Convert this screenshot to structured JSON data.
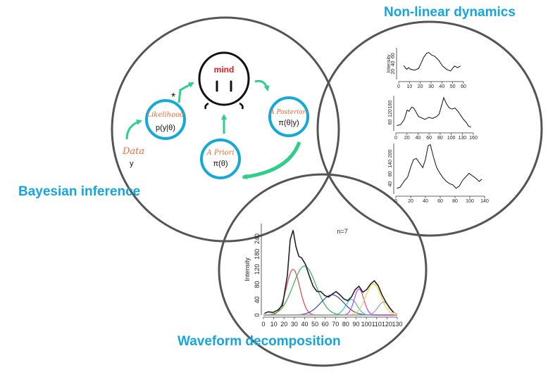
{
  "colors": {
    "title": "#15a5e0",
    "accent_orange": "#f06b3b",
    "node_ring": "#15a9d8",
    "arrow": "#2ecf8a",
    "venn": "#555555",
    "mind": "#e0161f"
  },
  "sections": {
    "bayesian": "Bayesian inference",
    "nonlinear": "Non-linear dynamics",
    "waveform": "Waveform decomposition"
  },
  "bayes": {
    "mind_label": "mind",
    "star": "*",
    "data_label": "Data",
    "data_symbol": "y",
    "likelihood_label": "Likelihood",
    "likelihood_formula": "p(y|θ)",
    "prior_label": "A Priori",
    "prior_formula": "π(θ)",
    "posterior_label": "A Posteriori",
    "posterior_formula": "π(θ|y)"
  },
  "chart_data": [
    {
      "type": "line",
      "ylabel": "Intensity",
      "x_ticks": [
        "0",
        "10",
        "20",
        "30",
        "40",
        "50",
        "60"
      ],
      "y_ticks": [
        "20",
        "40",
        "60"
      ],
      "xlim": [
        0,
        65
      ],
      "ylim": [
        0,
        75
      ],
      "x": [
        5,
        8,
        10,
        12,
        16,
        20,
        22,
        25,
        28,
        30,
        33,
        36,
        40,
        44,
        48,
        52,
        56,
        59,
        62
      ],
      "y": [
        33,
        24,
        28,
        24,
        22,
        26,
        36,
        52,
        62,
        64,
        58,
        55,
        46,
        32,
        24,
        20,
        32,
        28,
        32
      ]
    },
    {
      "type": "line",
      "x_ticks": [
        "0",
        "20",
        "40",
        "60",
        "80",
        "100",
        "130",
        "160"
      ],
      "y_ticks": [
        "60",
        "120",
        "160"
      ],
      "xlim": [
        0,
        165
      ],
      "ylim": [
        0,
        170
      ],
      "x": [
        2,
        10,
        18,
        24,
        28,
        34,
        38,
        42,
        48,
        55,
        62,
        70,
        78,
        86,
        92,
        97,
        102,
        108,
        114,
        120,
        126,
        132,
        138,
        144,
        150,
        155,
        160
      ],
      "y": [
        25,
        30,
        55,
        100,
        95,
        115,
        110,
        95,
        70,
        62,
        55,
        65,
        60,
        68,
        80,
        120,
        160,
        130,
        110,
        105,
        110,
        95,
        75,
        55,
        40,
        22,
        18
      ]
    },
    {
      "type": "line",
      "x_ticks": [
        "0",
        "20",
        "40",
        "60",
        "80",
        "100",
        "140"
      ],
      "y_ticks": [
        "40",
        "80",
        "140",
        "200"
      ],
      "xlim": [
        0,
        165
      ],
      "ylim": [
        0,
        220
      ],
      "x": [
        2,
        8,
        15,
        22,
        28,
        33,
        38,
        44,
        50,
        55,
        60,
        64,
        70,
        76,
        82,
        88,
        94,
        100,
        106,
        112,
        118,
        124,
        130,
        136,
        142,
        148,
        155,
        160
      ],
      "y": [
        25,
        30,
        55,
        75,
        120,
        150,
        155,
        135,
        115,
        150,
        210,
        215,
        160,
        115,
        90,
        70,
        55,
        45,
        40,
        25,
        35,
        60,
        75,
        90,
        80,
        70,
        55,
        65
      ]
    },
    {
      "type": "line",
      "annotation": "n=7",
      "ylabel": "Intensity",
      "x_ticks": [
        "0",
        "10",
        "20",
        "30",
        "40",
        "50",
        "60",
        "70",
        "80",
        "90",
        "100",
        "110",
        "120",
        "130"
      ],
      "y_ticks": [
        "0",
        "40",
        "80",
        "120",
        "180",
        "240"
      ],
      "xlim": [
        0,
        140
      ],
      "ylim": [
        0,
        280
      ],
      "x": [
        1,
        5,
        10,
        15,
        20,
        25,
        28,
        31,
        34,
        37,
        40,
        44,
        48,
        52,
        56,
        60,
        64,
        68,
        72,
        76,
        80,
        84,
        88,
        92,
        96,
        100,
        104,
        108,
        112,
        116,
        120,
        124,
        128,
        132,
        136
      ],
      "y": [
        5,
        10,
        8,
        15,
        30,
        120,
        230,
        260,
        210,
        180,
        175,
        155,
        120,
        88,
        72,
        72,
        60,
        55,
        64,
        72,
        62,
        50,
        44,
        55,
        78,
        88,
        70,
        78,
        95,
        105,
        90,
        62,
        40,
        22,
        8
      ],
      "series": [
        {
          "color": "#e8434b",
          "center": 31,
          "width": 7,
          "peak": 140
        },
        {
          "color": "#34b34a",
          "center": 43,
          "width": 12,
          "peak": 150
        },
        {
          "color": "#3a43b8",
          "center": 72,
          "width": 12,
          "peak": 62
        },
        {
          "color": "#2ec4d3",
          "center": 92,
          "width": 6,
          "peak": 48
        },
        {
          "color": "#d53de0",
          "center": 100,
          "width": 5,
          "peak": 80
        },
        {
          "color": "#f1d63b",
          "center": 115,
          "width": 8,
          "peak": 95
        },
        {
          "color": "#a0a0a0",
          "center": 126,
          "width": 6,
          "peak": 40
        }
      ]
    }
  ]
}
